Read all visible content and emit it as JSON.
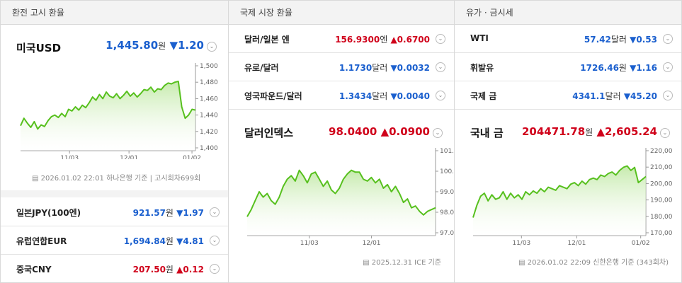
{
  "exchange": {
    "title": "환전 고시 환율",
    "usd": {
      "name": "미국USD",
      "value": "1,445.80",
      "unit": "원",
      "change": "▼1.20"
    },
    "chart_note": "2026.01.02 22:01 하나은행 기준 | 고시회차699회",
    "rows": [
      {
        "name": "일본JPY(100엔)",
        "value": "921.57",
        "unit": "원",
        "change": "▼1.97",
        "dir": "down"
      },
      {
        "name": "유럽연합EUR",
        "value": "1,694.84",
        "unit": "원",
        "change": "▼4.81",
        "dir": "down"
      },
      {
        "name": "중국CNY",
        "value": "207.50",
        "unit": "원",
        "change": "▲0.12",
        "dir": "up"
      }
    ]
  },
  "intl": {
    "title": "국제 시장 환율",
    "rows": [
      {
        "name": "달러/일본 엔",
        "value": "156.9300",
        "unit": "엔",
        "change": "▲0.6700",
        "dir": "up"
      },
      {
        "name": "유로/달러",
        "value": "1.1730",
        "unit": "달러",
        "change": "▼0.0032",
        "dir": "down"
      },
      {
        "name": "영국파운드/달러",
        "value": "1.3434",
        "unit": "달러",
        "change": "▼0.0040",
        "dir": "down"
      }
    ],
    "dxy": {
      "name": "달러인덱스",
      "value": "98.0400",
      "change": "▲0.0900"
    },
    "chart_note": "2025.12.31 ICE 기준"
  },
  "oil": {
    "title": "유가 · 금시세",
    "rows": [
      {
        "name": "WTI",
        "value": "57.42",
        "unit": "달러",
        "change": "▼0.53",
        "dir": "down"
      },
      {
        "name": "휘발유",
        "value": "1726.46",
        "unit": "원",
        "change": "▼1.16",
        "dir": "down"
      },
      {
        "name": "국제 금",
        "value": "4341.1",
        "unit": "달러",
        "change": "▼45.20",
        "dir": "down"
      }
    ],
    "gold": {
      "name": "국내 금",
      "value": "204471.78",
      "unit": "원",
      "change": "▲2,605.24"
    },
    "chart_note": "2026.01.02 22:09 신한은행 기준 (343회차)"
  },
  "chart_data": [
    {
      "type": "area",
      "name_ref": "미국USD",
      "x_ticks": [
        "11/03",
        "12/01",
        "01/02"
      ],
      "y_ticks": [
        "1,500",
        "1,480",
        "1,460",
        "1,440",
        "1,420",
        "1,400"
      ],
      "ylim": [
        1400,
        1500
      ],
      "values": [
        1427,
        1436,
        1430,
        1425,
        1432,
        1423,
        1428,
        1426,
        1433,
        1438,
        1440,
        1437,
        1442,
        1438,
        1447,
        1445,
        1450,
        1446,
        1452,
        1449,
        1455,
        1462,
        1458,
        1465,
        1460,
        1468,
        1463,
        1461,
        1466,
        1460,
        1464,
        1469,
        1463,
        1467,
        1462,
        1466,
        1471,
        1470,
        1474,
        1468,
        1472,
        1471,
        1476,
        1479,
        1478,
        1480,
        1481,
        1450,
        1436,
        1440,
        1447,
        1446
      ]
    },
    {
      "type": "area",
      "name_ref": "달러인덱스",
      "x_ticks": [
        "11/03",
        "12/01"
      ],
      "y_ticks": [
        "101.00",
        "100.00",
        "99.00",
        "98.00",
        "97.00"
      ],
      "ylim": [
        96.6,
        101.2
      ],
      "values": [
        97.5,
        97.9,
        98.4,
        98.9,
        98.6,
        98.8,
        98.4,
        98.2,
        98.6,
        99.2,
        99.6,
        99.8,
        99.5,
        100.1,
        99.8,
        99.4,
        99.9,
        100.0,
        99.6,
        99.2,
        99.5,
        99.0,
        98.8,
        99.1,
        99.6,
        99.9,
        100.1,
        100.0,
        100.0,
        99.6,
        99.5,
        99.7,
        99.4,
        99.6,
        99.1,
        99.3,
        98.9,
        99.2,
        98.8,
        98.3,
        98.5,
        98.0,
        98.1,
        97.8,
        97.6,
        97.8,
        97.9,
        98.0
      ]
    },
    {
      "type": "area",
      "name_ref": "국내 금",
      "x_ticks": [
        "11/03",
        "12/01",
        "01/02"
      ],
      "y_ticks": [
        "220,00",
        "210,00",
        "200,00",
        "190,00",
        "180,00",
        "170,00"
      ],
      "ylim": [
        168000,
        222000
      ],
      "values": [
        178000,
        186000,
        192000,
        194000,
        189000,
        193000,
        190000,
        191000,
        195000,
        190000,
        194000,
        191000,
        193000,
        190000,
        195000,
        193000,
        195500,
        194000,
        197000,
        195000,
        198000,
        197000,
        196000,
        199000,
        198000,
        197000,
        200000,
        201000,
        199000,
        202000,
        200000,
        203000,
        204000,
        203000,
        206000,
        205000,
        207000,
        208000,
        206000,
        209000,
        211000,
        212000,
        209000,
        211000,
        201000,
        203000,
        205000
      ]
    }
  ]
}
